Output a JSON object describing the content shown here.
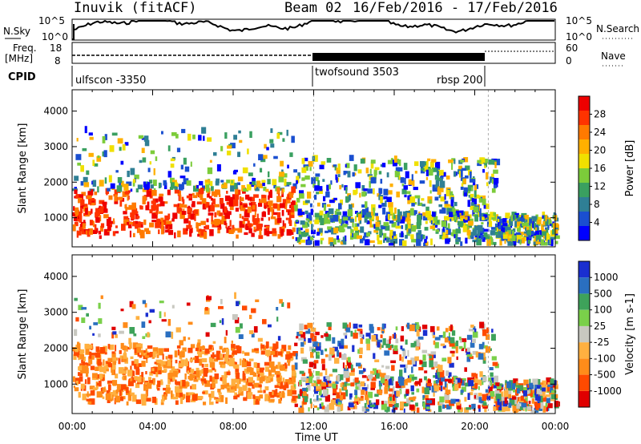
{
  "header": {
    "station": "Inuvik (fitACF)",
    "beam": "Beam 02",
    "date_range": "16/Feb/2016 - 17/Feb/2016"
  },
  "panels": {
    "nsky": {
      "label": "N.Sky",
      "ticks": [
        "10^5",
        "10^0"
      ],
      "right_ticks": [
        "10^5",
        "10^0"
      ],
      "right_label": "N.Search"
    },
    "freq": {
      "label_line1": "Freq.",
      "label_line2": "[MHz]",
      "ticks": [
        "18",
        "8"
      ],
      "right_ticks": [
        "60",
        "0"
      ],
      "right_label": "Nave"
    },
    "cpid": {
      "label": "CPID",
      "programs": [
        "ulfscon -3350",
        "twofsound 3503",
        "rbsp 200"
      ]
    }
  },
  "chart_data": [
    {
      "type": "heatmap",
      "title": "",
      "xlabel": "Time UT",
      "ylabel": "Slant Range [km]",
      "x_ticks": [
        "00:00",
        "04:00",
        "08:00",
        "12:00",
        "16:00",
        "20:00",
        "00:00"
      ],
      "y_ticks": [
        "1000",
        "2000",
        "3000",
        "4000"
      ],
      "xlim": [
        0,
        24
      ],
      "ylim": [
        180,
        4600
      ],
      "colorbar": {
        "label": "Power [dB]",
        "ticks": [
          "28",
          "24",
          "20",
          "16",
          "12",
          "8",
          "4"
        ],
        "colors": [
          "#0000ff",
          "#1a4fd0",
          "#2f7f95",
          "#3aa060",
          "#7ccc3a",
          "#f0e000",
          "#ffb000",
          "#ff7a00",
          "#ff3300",
          "#ee0000"
        ]
      }
    },
    {
      "type": "heatmap",
      "title": "",
      "xlabel": "Time UT",
      "ylabel": "Slant Range [km]",
      "x_ticks": [
        "00:00",
        "04:00",
        "08:00",
        "12:00",
        "16:00",
        "20:00",
        "00:00"
      ],
      "y_ticks": [
        "1000",
        "2000",
        "3000",
        "4000"
      ],
      "xlim": [
        0,
        24
      ],
      "ylim": [
        180,
        4600
      ],
      "colorbar": {
        "label": "Velocity [m s-1]",
        "ticks": [
          "1000",
          "500",
          "100",
          "25",
          "-25",
          "-100",
          "-500",
          "-1000"
        ],
        "colors": [
          "#e00000",
          "#ff4a00",
          "#ff8c1a",
          "#ffb040",
          "#c8c8c0",
          "#7ad04a",
          "#3ea25a",
          "#2a6fc0",
          "#1a2fd0"
        ]
      }
    }
  ]
}
